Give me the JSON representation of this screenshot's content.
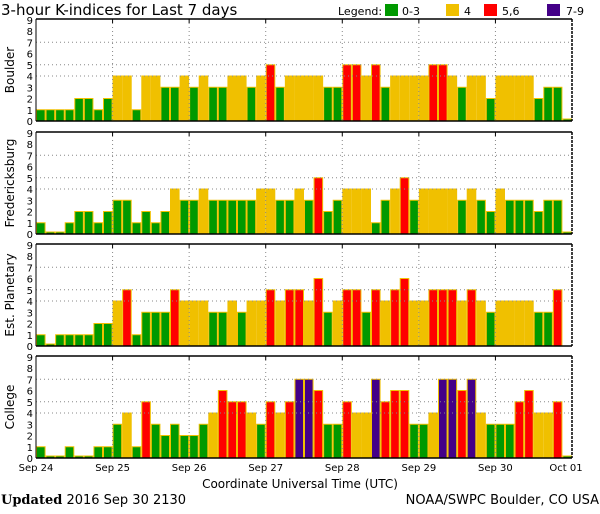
{
  "chart_data": {
    "type": "bar",
    "title": "3-hour K-indices for Last 7 days",
    "legend_label": "Legend:",
    "legend": [
      {
        "label": "0-3",
        "color": "#009900"
      },
      {
        "label": "4",
        "color": "#f0c000"
      },
      {
        "label": "5,6",
        "color": "#ff0000"
      },
      {
        "label": "7-9",
        "color": "#440088"
      }
    ],
    "xlabel": "Coordinate Universal Time (UTC)",
    "x_ticks": [
      "Sep 24",
      "Sep 25",
      "Sep 26",
      "Sep 27",
      "Sep 28",
      "Sep 29",
      "Sep 30",
      "Oct 01"
    ],
    "y_ticks": [
      "0",
      "1",
      "2",
      "3",
      "4",
      "5",
      "6",
      "7",
      "8",
      "9"
    ],
    "ylim": [
      0,
      9
    ],
    "grid_levels": [
      4,
      5,
      7
    ],
    "bar_interval_hours": 3,
    "series": [
      {
        "name": "Boulder",
        "values": [
          1,
          1,
          1,
          1,
          2,
          2,
          1,
          2,
          4,
          4,
          1,
          4,
          4,
          3,
          3,
          4,
          3,
          4,
          3,
          3,
          4,
          4,
          3,
          4,
          5,
          3,
          4,
          4,
          4,
          4,
          3,
          3,
          5,
          5,
          4,
          5,
          3,
          4,
          4,
          4,
          4,
          5,
          5,
          4,
          3,
          4,
          4,
          2,
          4,
          4,
          4,
          4,
          2,
          3,
          3,
          0
        ]
      },
      {
        "name": "Fredericksburg",
        "values": [
          1,
          0,
          0,
          1,
          2,
          2,
          1,
          2,
          3,
          3,
          1,
          2,
          1,
          2,
          4,
          3,
          3,
          4,
          3,
          3,
          3,
          3,
          3,
          4,
          4,
          3,
          3,
          4,
          3,
          5,
          2,
          3,
          4,
          4,
          4,
          1,
          3,
          4,
          5,
          3,
          4,
          4,
          4,
          4,
          3,
          4,
          3,
          2,
          4,
          3,
          3,
          3,
          2,
          3,
          3,
          0
        ]
      },
      {
        "name": "Est. Planetary",
        "values": [
          1,
          0,
          1,
          1,
          1,
          1,
          2,
          2,
          4,
          5,
          1,
          3,
          3,
          3,
          5,
          4,
          4,
          4,
          3,
          3,
          4,
          3,
          4,
          4,
          5,
          4,
          5,
          5,
          4,
          6,
          3,
          4,
          5,
          5,
          3,
          5,
          4,
          5,
          6,
          4,
          4,
          5,
          5,
          5,
          4,
          5,
          4,
          3,
          4,
          4,
          4,
          4,
          3,
          3,
          5,
          null
        ]
      },
      {
        "name": "College",
        "values": [
          1,
          0,
          0,
          1,
          0,
          0,
          1,
          1,
          3,
          4,
          1,
          5,
          3,
          2,
          3,
          2,
          2,
          3,
          4,
          6,
          5,
          5,
          4,
          3,
          5,
          4,
          5,
          7,
          7,
          6,
          3,
          3,
          5,
          4,
          4,
          7,
          5,
          6,
          6,
          3,
          3,
          4,
          7,
          7,
          6,
          7,
          4,
          3,
          3,
          3,
          5,
          6,
          4,
          4,
          5,
          0
        ]
      }
    ]
  },
  "footer": {
    "updated_label": "Updated",
    "updated_value": "2016 Sep 30 2130",
    "source": "NOAA/SWPC Boulder, CO USA"
  }
}
